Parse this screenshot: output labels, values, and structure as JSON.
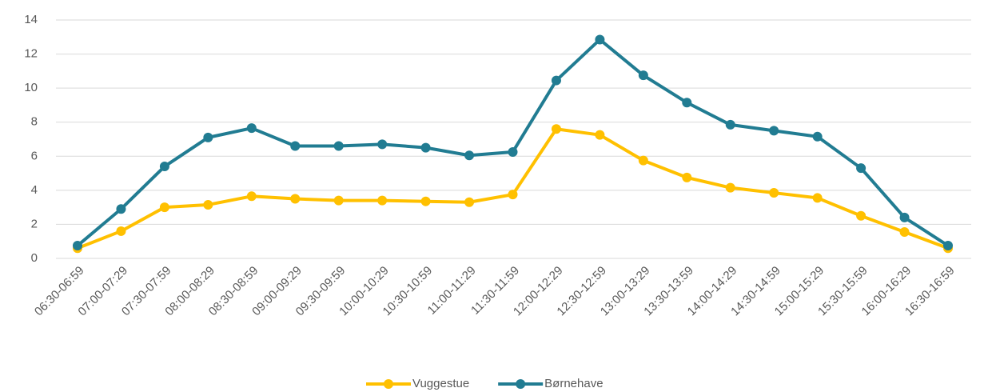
{
  "chart_data": {
    "type": "line",
    "categories": [
      "06:30-06:59",
      "07:00-07:29",
      "07:30-07:59",
      "08:00-08:29",
      "08:30-08:59",
      "09:00-09:29",
      "09:30-09:59",
      "10:00-10:29",
      "10:30-10:59",
      "11:00-11:29",
      "11:30-11:59",
      "12:00-12:29",
      "12:30-12:59",
      "13:00-13:29",
      "13:30-13:59",
      "14:00-14:29",
      "14:30-14:59",
      "15:00-15:29",
      "15:30-15:59",
      "16:00-16:29",
      "16:30-16:59"
    ],
    "series": [
      {
        "name": "Vuggestue",
        "color": "#ffc000",
        "values": [
          0.6,
          1.6,
          3.0,
          3.15,
          3.65,
          3.5,
          3.4,
          3.4,
          3.35,
          3.3,
          3.75,
          7.6,
          7.25,
          5.75,
          4.75,
          4.15,
          3.85,
          3.55,
          2.5,
          1.55,
          0.6
        ]
      },
      {
        "name": "Børnehave",
        "color": "#217c92",
        "values": [
          0.75,
          2.9,
          5.4,
          7.1,
          7.65,
          6.6,
          6.6,
          6.7,
          6.5,
          6.05,
          6.25,
          10.45,
          12.85,
          10.75,
          9.15,
          7.85,
          7.5,
          7.15,
          5.3,
          2.4,
          0.75
        ]
      }
    ],
    "ylim": [
      0,
      14
    ],
    "yticks": [
      0,
      2,
      4,
      6,
      8,
      10,
      12,
      14
    ],
    "grid": true,
    "legend": "bottom"
  }
}
